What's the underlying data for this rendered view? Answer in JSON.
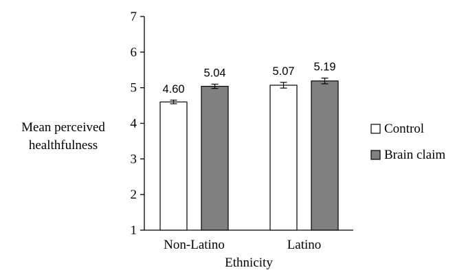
{
  "chart_data": {
    "type": "bar",
    "title": "",
    "xlabel": "Ethnicity",
    "ylabel_lines": [
      "Mean perceived",
      "healthfulness"
    ],
    "ylim": [
      1,
      7
    ],
    "yticks": [
      "1",
      "2",
      "3",
      "4",
      "5",
      "6",
      "7"
    ],
    "categories": [
      "Non-Latino",
      "Latino"
    ],
    "series": [
      {
        "name": "Control",
        "color": "#ffffff",
        "values": [
          4.6,
          5.07
        ],
        "labels": [
          "4.60",
          "5.07"
        ],
        "errors": [
          0.05,
          0.08
        ]
      },
      {
        "name": "Brain claim",
        "color": "#808080",
        "values": [
          5.04,
          5.19
        ],
        "labels": [
          "5.04",
          "5.19"
        ],
        "errors": [
          0.06,
          0.08
        ]
      }
    ],
    "legend_position": "right",
    "grid": false
  }
}
